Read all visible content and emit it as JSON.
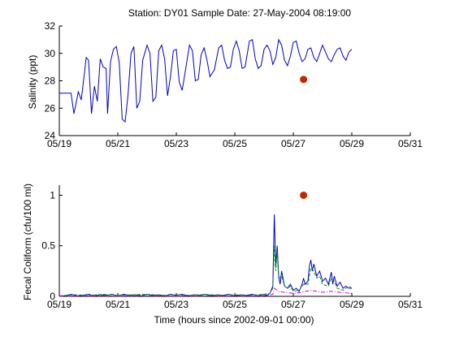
{
  "title": "Station: DY01  Sample Date: 27-May-2004 08:19:00",
  "colors": {
    "salinity_line": "#0000cc",
    "sample_marker": "#cc2200",
    "fc_line1": "#0000cc",
    "fc_line2": "#009900",
    "fc_line3": "#cc00cc",
    "axis": "#000000"
  },
  "chart_data": [
    {
      "type": "line",
      "title": "Station: DY01  Sample Date: 27-May-2004 08:19:00",
      "xlabel": "",
      "ylabel": "Salinity (ppt)",
      "xticks": [
        "05/19",
        "05/21",
        "05/23",
        "05/25",
        "05/27",
        "05/29",
        "05/31"
      ],
      "yticks": [
        "24",
        "26",
        "28",
        "30",
        "32"
      ],
      "xlim_days": [
        19,
        31
      ],
      "ylim": [
        24,
        32
      ],
      "series": [
        {
          "style": "line",
          "color": "#0000cc",
          "points": [
            [
              19.0,
              27.1
            ],
            [
              19.4,
              27.1
            ],
            [
              19.5,
              25.6
            ],
            [
              19.65,
              27.2
            ],
            [
              19.75,
              26.6
            ],
            [
              19.85,
              28.4
            ],
            [
              19.92,
              29.7
            ],
            [
              20.0,
              29.5
            ],
            [
              20.1,
              25.6
            ],
            [
              20.2,
              27.6
            ],
            [
              20.3,
              26.5
            ],
            [
              20.4,
              29.6
            ],
            [
              20.5,
              29.0
            ],
            [
              20.6,
              28.9
            ],
            [
              20.65,
              25.6
            ],
            [
              20.75,
              29.4
            ],
            [
              20.85,
              30.3
            ],
            [
              20.95,
              30.5
            ],
            [
              21.05,
              29.3
            ],
            [
              21.15,
              25.2
            ],
            [
              21.25,
              25.0
            ],
            [
              21.35,
              27.0
            ],
            [
              21.45,
              30.0
            ],
            [
              21.55,
              30.5
            ],
            [
              21.65,
              26.0
            ],
            [
              21.75,
              26.5
            ],
            [
              21.85,
              29.5
            ],
            [
              22.0,
              30.6
            ],
            [
              22.1,
              30.0
            ],
            [
              22.2,
              26.5
            ],
            [
              22.3,
              26.8
            ],
            [
              22.4,
              30.2
            ],
            [
              22.5,
              30.6
            ],
            [
              22.6,
              29.6
            ],
            [
              22.7,
              26.9
            ],
            [
              22.8,
              28.3
            ],
            [
              22.9,
              30.2
            ],
            [
              23.0,
              30.3
            ],
            [
              23.1,
              27.9
            ],
            [
              23.2,
              27.3
            ],
            [
              23.3,
              28.6
            ],
            [
              23.45,
              30.6
            ],
            [
              23.55,
              30.2
            ],
            [
              23.65,
              28.0
            ],
            [
              23.75,
              28.1
            ],
            [
              23.85,
              29.9
            ],
            [
              23.95,
              30.4
            ],
            [
              24.05,
              29.5
            ],
            [
              24.15,
              28.3
            ],
            [
              24.3,
              28.8
            ],
            [
              24.45,
              30.4
            ],
            [
              24.55,
              30.6
            ],
            [
              24.65,
              29.5
            ],
            [
              24.75,
              28.9
            ],
            [
              24.85,
              29.0
            ],
            [
              24.95,
              30.3
            ],
            [
              25.05,
              30.9
            ],
            [
              25.15,
              30.2
            ],
            [
              25.25,
              28.9
            ],
            [
              25.35,
              29.0
            ],
            [
              25.5,
              30.9
            ],
            [
              25.6,
              31.0
            ],
            [
              25.7,
              29.6
            ],
            [
              25.8,
              28.9
            ],
            [
              25.9,
              29.1
            ],
            [
              26.0,
              30.3
            ],
            [
              26.1,
              30.6
            ],
            [
              26.2,
              30.2
            ],
            [
              26.3,
              29.2
            ],
            [
              26.4,
              29.7
            ],
            [
              26.5,
              31.0
            ],
            [
              26.6,
              30.6
            ],
            [
              26.7,
              29.5
            ],
            [
              26.8,
              29.1
            ],
            [
              26.9,
              29.8
            ],
            [
              27.0,
              30.8
            ],
            [
              27.1,
              30.9
            ],
            [
              27.2,
              30.0
            ],
            [
              27.3,
              29.4
            ],
            [
              27.4,
              29.6
            ],
            [
              27.5,
              30.3
            ],
            [
              27.6,
              30.4
            ],
            [
              27.7,
              29.7
            ],
            [
              27.8,
              29.4
            ],
            [
              27.9,
              30.0
            ],
            [
              28.0,
              30.6
            ],
            [
              28.1,
              30.1
            ],
            [
              28.2,
              29.6
            ],
            [
              28.3,
              29.4
            ],
            [
              28.4,
              29.9
            ],
            [
              28.5,
              30.3
            ],
            [
              28.6,
              30.4
            ],
            [
              28.7,
              29.8
            ],
            [
              28.8,
              29.5
            ],
            [
              28.9,
              30.1
            ],
            [
              29.0,
              30.3
            ]
          ]
        },
        {
          "style": "marker",
          "color": "#cc2200",
          "points": [
            [
              27.35,
              28.1
            ]
          ]
        }
      ]
    },
    {
      "type": "line",
      "title": "",
      "xlabel": "Time (hours since 2002-09-01 00:00)",
      "ylabel": "Fecal Coliform (cfu/100 ml)",
      "xticks": [
        "05/19",
        "05/21",
        "05/23",
        "05/25",
        "05/27",
        "05/29",
        "05/31"
      ],
      "yticks": [
        "0",
        "0.5",
        "1"
      ],
      "xlim_days": [
        19,
        31
      ],
      "ylim": [
        0,
        1.1
      ],
      "series": [
        {
          "style": "line",
          "color": "#0000cc",
          "points": [
            [
              19.0,
              0.005
            ],
            [
              19.2,
              0.005
            ],
            [
              19.4,
              0.02
            ],
            [
              19.6,
              0.005
            ],
            [
              19.8,
              0.01
            ],
            [
              20.0,
              0.02
            ],
            [
              20.2,
              0.005
            ],
            [
              20.4,
              0.015
            ],
            [
              20.6,
              0.01
            ],
            [
              20.8,
              0.02
            ],
            [
              21.0,
              0.005
            ],
            [
              21.2,
              0.02
            ],
            [
              21.4,
              0.01
            ],
            [
              21.6,
              0.015
            ],
            [
              21.8,
              0.005
            ],
            [
              22.0,
              0.02
            ],
            [
              22.2,
              0.01
            ],
            [
              22.4,
              0.015
            ],
            [
              22.6,
              0.005
            ],
            [
              22.8,
              0.02
            ],
            [
              23.0,
              0.01
            ],
            [
              23.2,
              0.02
            ],
            [
              23.4,
              0.005
            ],
            [
              23.6,
              0.015
            ],
            [
              23.8,
              0.01
            ],
            [
              24.0,
              0.02
            ],
            [
              24.2,
              0.005
            ],
            [
              24.4,
              0.015
            ],
            [
              24.6,
              0.01
            ],
            [
              24.8,
              0.02
            ],
            [
              25.0,
              0.005
            ],
            [
              25.2,
              0.015
            ],
            [
              25.4,
              0.01
            ],
            [
              25.6,
              0.02
            ],
            [
              25.8,
              0.005
            ],
            [
              26.0,
              0.02
            ],
            [
              26.1,
              0.01
            ],
            [
              26.2,
              0.03
            ],
            [
              26.3,
              0.1
            ],
            [
              26.35,
              0.81
            ],
            [
              26.4,
              0.3
            ],
            [
              26.45,
              0.5
            ],
            [
              26.5,
              0.2
            ],
            [
              26.55,
              0.12
            ],
            [
              26.6,
              0.25
            ],
            [
              26.7,
              0.1
            ],
            [
              26.8,
              0.08
            ],
            [
              26.9,
              0.12
            ],
            [
              27.0,
              0.06
            ],
            [
              27.1,
              0.08
            ],
            [
              27.2,
              0.05
            ],
            [
              27.3,
              0.12
            ],
            [
              27.35,
              0.18
            ],
            [
              27.4,
              0.12
            ],
            [
              27.5,
              0.15
            ],
            [
              27.55,
              0.3
            ],
            [
              27.6,
              0.36
            ],
            [
              27.65,
              0.25
            ],
            [
              27.7,
              0.32
            ],
            [
              27.8,
              0.2
            ],
            [
              27.9,
              0.25
            ],
            [
              28.0,
              0.15
            ],
            [
              28.1,
              0.18
            ],
            [
              28.2,
              0.12
            ],
            [
              28.3,
              0.24
            ],
            [
              28.35,
              0.12
            ],
            [
              28.4,
              0.2
            ],
            [
              28.5,
              0.1
            ],
            [
              28.6,
              0.14
            ],
            [
              28.7,
              0.08
            ],
            [
              28.8,
              0.1
            ],
            [
              28.9,
              0.08
            ],
            [
              29.0,
              0.08
            ]
          ]
        },
        {
          "style": "dashed",
          "color": "#009900",
          "points": [
            [
              19.0,
              0.005
            ],
            [
              19.5,
              0.015
            ],
            [
              20.0,
              0.01
            ],
            [
              20.5,
              0.02
            ],
            [
              21.0,
              0.01
            ],
            [
              21.5,
              0.015
            ],
            [
              22.0,
              0.02
            ],
            [
              22.5,
              0.01
            ],
            [
              23.0,
              0.015
            ],
            [
              23.5,
              0.01
            ],
            [
              24.0,
              0.02
            ],
            [
              24.5,
              0.01
            ],
            [
              25.0,
              0.015
            ],
            [
              25.5,
              0.01
            ],
            [
              26.0,
              0.02
            ],
            [
              26.2,
              0.03
            ],
            [
              26.3,
              0.08
            ],
            [
              26.35,
              0.5
            ],
            [
              26.4,
              0.25
            ],
            [
              26.45,
              0.45
            ],
            [
              26.5,
              0.18
            ],
            [
              26.6,
              0.2
            ],
            [
              26.7,
              0.1
            ],
            [
              26.8,
              0.08
            ],
            [
              26.9,
              0.1
            ],
            [
              27.0,
              0.05
            ],
            [
              27.2,
              0.06
            ],
            [
              27.35,
              0.12
            ],
            [
              27.5,
              0.12
            ],
            [
              27.6,
              0.28
            ],
            [
              27.7,
              0.25
            ],
            [
              27.8,
              0.18
            ],
            [
              27.9,
              0.2
            ],
            [
              28.0,
              0.12
            ],
            [
              28.2,
              0.1
            ],
            [
              28.3,
              0.18
            ],
            [
              28.4,
              0.15
            ],
            [
              28.5,
              0.08
            ],
            [
              28.7,
              0.06
            ],
            [
              28.9,
              0.1
            ],
            [
              29.0,
              0.08
            ]
          ]
        },
        {
          "style": "dashdot",
          "color": "#cc00cc",
          "points": [
            [
              19.0,
              0.002
            ],
            [
              20.0,
              0.005
            ],
            [
              21.0,
              0.003
            ],
            [
              22.0,
              0.006
            ],
            [
              23.0,
              0.003
            ],
            [
              24.0,
              0.005
            ],
            [
              25.0,
              0.004
            ],
            [
              26.0,
              0.006
            ],
            [
              26.3,
              0.02
            ],
            [
              26.35,
              0.08
            ],
            [
              26.5,
              0.05
            ],
            [
              26.7,
              0.04
            ],
            [
              27.0,
              0.03
            ],
            [
              27.3,
              0.04
            ],
            [
              27.6,
              0.06
            ],
            [
              27.8,
              0.05
            ],
            [
              28.0,
              0.04
            ],
            [
              28.3,
              0.05
            ],
            [
              28.6,
              0.04
            ],
            [
              29.0,
              0.03
            ]
          ]
        },
        {
          "style": "marker",
          "color": "#cc2200",
          "points": [
            [
              27.35,
              1.0
            ]
          ]
        }
      ]
    }
  ]
}
